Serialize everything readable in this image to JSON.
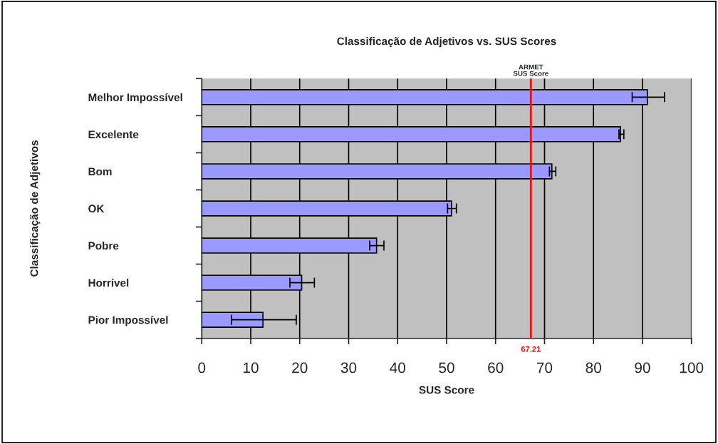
{
  "chart_data": {
    "type": "bar",
    "orientation": "horizontal",
    "title": "Classificação de Adjetivos vs. SUS Scores",
    "xlabel": "SUS Score",
    "ylabel": "Classificação de Adjetivos",
    "categories": [
      "Melhor Impossível",
      "Excelente",
      "Bom",
      "OK",
      "Pobre",
      "Horrível",
      "Pior Impossível"
    ],
    "values": [
      91.0,
      85.5,
      71.5,
      51.0,
      35.7,
      20.4,
      12.5
    ],
    "errors": [
      [
        87.9,
        94.5
      ],
      [
        85.2,
        86.2
      ],
      [
        71.0,
        72.3
      ],
      [
        50.2,
        52.0
      ],
      [
        34.3,
        37.2
      ],
      [
        18.0,
        23.0
      ],
      [
        6.1,
        19.3
      ]
    ],
    "color": "#9999ff",
    "xlim": [
      0,
      100
    ],
    "xticks": [
      0,
      10,
      20,
      30,
      40,
      50,
      60,
      70,
      80,
      90,
      100
    ],
    "grid": "x",
    "annotations": [
      "67.21"
    ],
    "ref_lines": [
      {
        "axis": "x",
        "value": 67.21,
        "label": "ARMET\nSUS Score",
        "color": "#ee1111"
      }
    ]
  }
}
